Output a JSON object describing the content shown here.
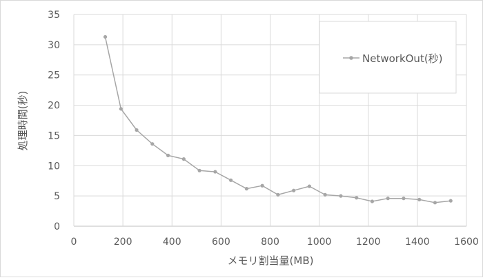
{
  "chart_data": {
    "type": "line",
    "title": "",
    "xlabel": "メモリ割当量(MB)",
    "ylabel": "処理時間(秒)",
    "xlim": [
      0,
      1600
    ],
    "ylim": [
      0,
      35
    ],
    "x_ticks": [
      "0",
      "200",
      "400",
      "600",
      "800",
      "1000",
      "1200",
      "1400",
      "1600"
    ],
    "y_ticks": [
      "0",
      "5",
      "10",
      "15",
      "20",
      "25",
      "30",
      "35"
    ],
    "grid": true,
    "legend_position": "top-right",
    "series": [
      {
        "name": "NetworkOut(秒)",
        "color": "#a6a6a6",
        "x": [
          128,
          192,
          256,
          320,
          384,
          448,
          512,
          576,
          640,
          704,
          768,
          832,
          896,
          960,
          1024,
          1088,
          1152,
          1216,
          1280,
          1344,
          1408,
          1472,
          1536
        ],
        "y": [
          31.3,
          19.4,
          15.9,
          13.6,
          11.7,
          11.1,
          9.2,
          9.0,
          7.6,
          6.2,
          6.7,
          5.2,
          5.9,
          6.6,
          5.2,
          5.0,
          4.7,
          4.1,
          4.6,
          4.6,
          4.4,
          3.9,
          4.2
        ]
      }
    ]
  }
}
